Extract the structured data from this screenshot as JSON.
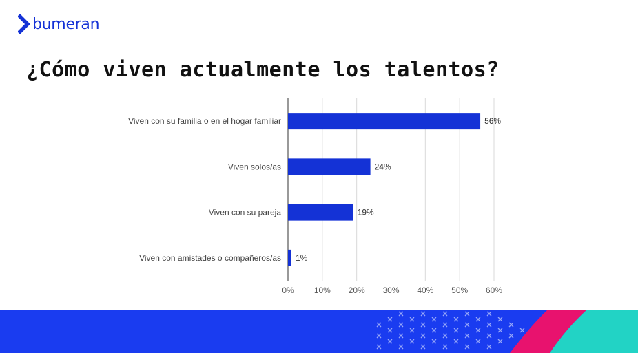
{
  "brand": {
    "name": "bumeran",
    "accent_color": "#1432d6"
  },
  "slide": {
    "title": "¿Cómo viven actualmente los talentos?"
  },
  "chart_data": {
    "type": "bar",
    "orientation": "horizontal",
    "categories": [
      "Viven con su familia o en el hogar familiar",
      "Viven solos/as",
      "Viven con su pareja",
      "Viven con amistades o compañeros/as"
    ],
    "values": [
      56,
      24,
      19,
      1
    ],
    "data_labels": [
      "56%",
      "24%",
      "19%",
      "1%"
    ],
    "x_ticks": [
      "0%",
      "10%",
      "20%",
      "30%",
      "40%",
      "50%",
      "60%"
    ],
    "xlim": [
      0,
      60
    ],
    "bar_color": "#1432d6",
    "grid": true,
    "legend": "none"
  },
  "footer": {
    "band_color": "#1a3cf0",
    "accent_pink": "#e8126e",
    "accent_teal": "#22d3c5",
    "pattern_icon": "cross-mark-icon"
  }
}
